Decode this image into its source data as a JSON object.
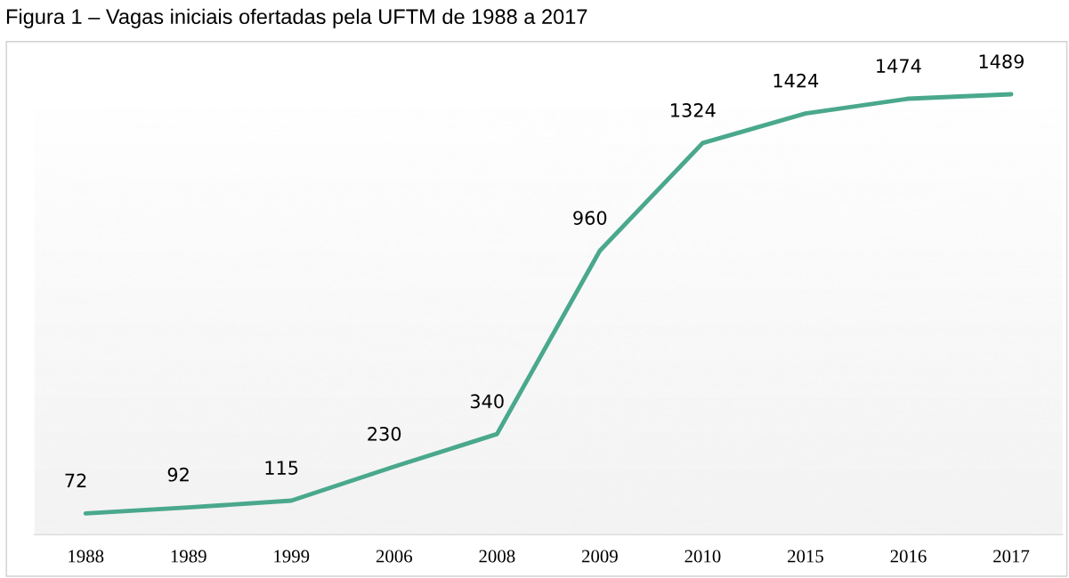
{
  "chart_data": {
    "type": "line",
    "title": "Figura 1 – Vagas iniciais ofertadas pela UFTM de 1988 a 2017",
    "categories": [
      "1988",
      "1989",
      "1999",
      "2006",
      "2008",
      "2009",
      "2010",
      "2015",
      "2016",
      "2017"
    ],
    "series": [
      {
        "color": "#4aa88c",
        "values": [
          72,
          92,
          115,
          230,
          340,
          960,
          1324,
          1424,
          1474,
          1489
        ]
      }
    ],
    "data_labels": true,
    "grid": false,
    "legend": false,
    "marker": "none",
    "line_style": "solid",
    "tick_labels": "x"
  }
}
